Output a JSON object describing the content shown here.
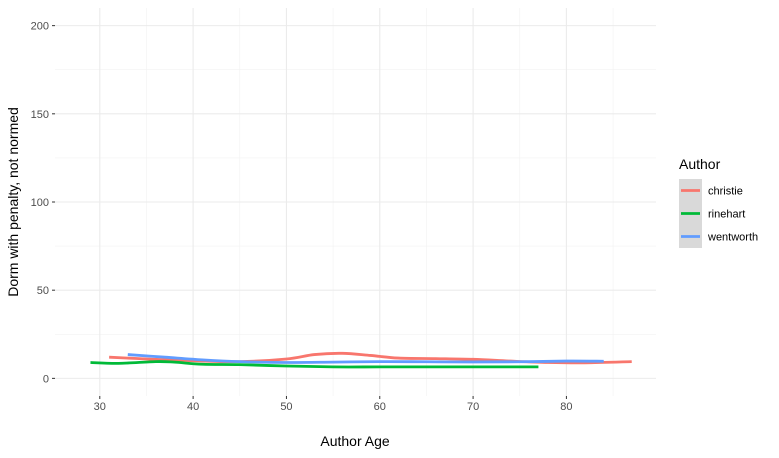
{
  "chart_data": {
    "type": "line",
    "title": "",
    "xlabel": "Author Age",
    "ylabel": "Dorm with penalty, not normed",
    "xlim": [
      25.2,
      89.6
    ],
    "ylim": [
      -10,
      210
    ],
    "x_ticks": [
      30,
      40,
      50,
      60,
      70,
      80
    ],
    "y_ticks": [
      0,
      50,
      100,
      150,
      200
    ],
    "grid": true,
    "legend": {
      "title": "Author",
      "position": "right"
    },
    "series": [
      {
        "name": "christie",
        "color": "#F8766D",
        "points": [
          [
            31,
            12.0
          ],
          [
            35,
            11.0
          ],
          [
            40,
            10.0
          ],
          [
            45,
            9.5
          ],
          [
            50,
            11.0
          ],
          [
            53,
            13.5
          ],
          [
            56,
            14.2
          ],
          [
            59,
            13.0
          ],
          [
            62,
            11.5
          ],
          [
            66,
            11.2
          ],
          [
            70,
            10.8
          ],
          [
            74,
            9.8
          ],
          [
            78,
            9.0
          ],
          [
            82,
            8.8
          ],
          [
            87,
            9.5
          ]
        ]
      },
      {
        "name": "rinehart",
        "color": "#00BA38",
        "points": [
          [
            29,
            9.0
          ],
          [
            32,
            8.5
          ],
          [
            36,
            9.5
          ],
          [
            38,
            9.2
          ],
          [
            41,
            8.0
          ],
          [
            45,
            7.8
          ],
          [
            50,
            7.0
          ],
          [
            55,
            6.5
          ],
          [
            60,
            6.5
          ],
          [
            65,
            6.5
          ],
          [
            70,
            6.5
          ],
          [
            77,
            6.5
          ]
        ]
      },
      {
        "name": "wentworth",
        "color": "#619CFF",
        "points": [
          [
            33,
            13.5
          ],
          [
            37,
            12.0
          ],
          [
            41,
            10.5
          ],
          [
            45,
            9.5
          ],
          [
            50,
            9.0
          ],
          [
            55,
            9.2
          ],
          [
            60,
            9.5
          ],
          [
            65,
            9.4
          ],
          [
            70,
            9.3
          ],
          [
            75,
            9.4
          ],
          [
            80,
            9.8
          ],
          [
            84,
            9.7
          ]
        ]
      }
    ]
  }
}
